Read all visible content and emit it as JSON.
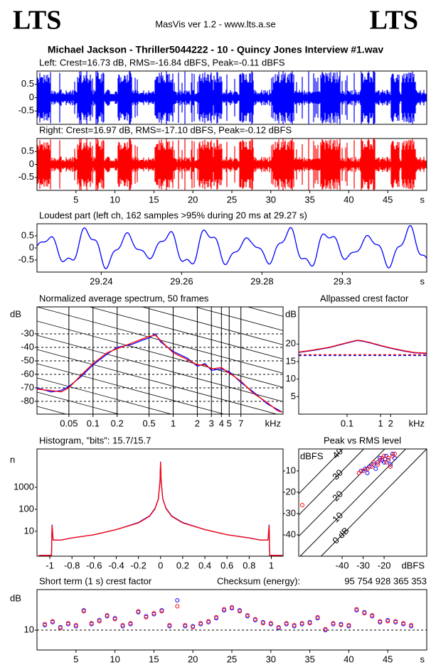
{
  "header": {
    "left_logo": "LTS",
    "center": "MasVis ver 1.2 - www.lts.a.se",
    "right_logo": "LTS",
    "file": "Michael Jackson - Thriller5044222 - 10 - Quincy Jones Interview #1.wav"
  },
  "chart_data": [
    {
      "type": "waveform",
      "title": "Left: Crest=16.73 dB, RMS=-16.84 dBFS, Peak=-0.11 dBFS",
      "color": "#0000ff",
      "ylim": [
        -1,
        1
      ],
      "yticks": [
        0.5,
        0,
        -0.5
      ]
    },
    {
      "type": "waveform",
      "title": "Right: Crest=16.97 dB, RMS=-17.10 dBFS, Peak=-0.12 dBFS",
      "color": "#ff0000",
      "ylim": [
        -1,
        1
      ],
      "yticks": [
        0.5,
        0,
        -0.5
      ],
      "xlim": [
        0,
        50
      ],
      "xticks": [
        5,
        10,
        15,
        20,
        25,
        30,
        35,
        40,
        45
      ],
      "x_label": "s"
    },
    {
      "type": "oscillation",
      "title": "Loudest part (left  ch, 162 samples >95% during 20 ms at 29.27 s)",
      "color": "#0000ff",
      "ylim": [
        -1,
        1
      ],
      "yticks": [
        0.5,
        0,
        -0.5
      ],
      "xlim": [
        29.224,
        29.321
      ],
      "xticks": [
        29.24,
        29.26,
        29.28,
        29.3
      ],
      "x_label": "s"
    },
    {
      "type": "line",
      "title": "Normalized average spectrum, 50 frames",
      "y_label": "dB",
      "x_label": "kHz",
      "xlog": true,
      "grid": true,
      "xlim": [
        0.02,
        23.5
      ],
      "xticks": [
        0.05,
        0.1,
        0.2,
        0.5,
        1,
        2,
        3,
        4,
        5,
        7
      ],
      "ylim": [
        -89.5,
        -10
      ],
      "yticks": [
        -30,
        -40,
        -50,
        -60,
        -70,
        -80
      ],
      "x": [
        0.02,
        0.03,
        0.04,
        0.05,
        0.07,
        0.1,
        0.15,
        0.2,
        0.3,
        0.4,
        0.5,
        0.6,
        0.7,
        1,
        1.5,
        2,
        2.5,
        3,
        4,
        5,
        7,
        10,
        15,
        20,
        23
      ],
      "series": [
        {
          "color": "#0000ff",
          "values": [
            -70,
            -73,
            -72,
            -69,
            -62,
            -53,
            -45,
            -40,
            -38,
            -35,
            -33,
            -30,
            -36,
            -43,
            -48,
            -54,
            -52,
            -57,
            -56,
            -58,
            -66,
            -73,
            -82,
            -86,
            -88
          ]
        },
        {
          "color": "#ff0000",
          "values": [
            -71,
            -72,
            -73,
            -70,
            -61,
            -52,
            -44,
            -41,
            -37,
            -34,
            -32,
            -31,
            -35,
            -44,
            -49,
            -53,
            -53,
            -56,
            -55,
            -59,
            -65,
            -74,
            -81,
            -87,
            -88
          ]
        }
      ]
    },
    {
      "type": "line",
      "title": "Allpassed crest factor",
      "y_label": "dB",
      "x_label": "kHz",
      "xlog": true,
      "xlim": [
        0.0036,
        24
      ],
      "xticks": [
        0.1,
        1,
        2
      ],
      "ylim": [
        0,
        30.6
      ],
      "yticks": [
        20,
        15,
        10,
        5
      ],
      "x": [
        0.0036,
        0.01,
        0.03,
        0.1,
        0.2,
        0.3,
        0.5,
        1,
        2,
        5,
        10,
        24
      ],
      "crest_lines": [
        16.73,
        16.97
      ],
      "series": [
        {
          "color": "#0000ff",
          "values": [
            17.6,
            18.2,
            19,
            20.3,
            21,
            20.8,
            20.3,
            19.5,
            18.8,
            18,
            17.5,
            17.3
          ]
        },
        {
          "color": "#ff0000",
          "values": [
            17.7,
            18.3,
            19.1,
            20.4,
            21.1,
            20.9,
            20.4,
            19.6,
            18.9,
            18.1,
            17.6,
            17.4
          ]
        }
      ]
    },
    {
      "type": "line",
      "title": "Histogram, \"bits\": 15.7/15.7",
      "y_label": "n",
      "ylog": true,
      "xlim": [
        -1.116,
        1.106
      ],
      "xticks": [
        -1,
        -0.8,
        -0.6,
        -0.4,
        -0.2,
        0,
        0.2,
        0.4,
        0.6,
        0.8,
        1
      ],
      "ylim": [
        0.74,
        55000
      ],
      "yticks": [
        10,
        100,
        1000
      ],
      "x": [
        -1.1,
        -0.985,
        -0.98,
        -0.97,
        -0.9,
        -0.8,
        -0.6,
        -0.4,
        -0.2,
        -0.1,
        -0.05,
        -0.02,
        -0.005,
        0,
        0.005,
        0.02,
        0.05,
        0.1,
        0.2,
        0.4,
        0.6,
        0.8,
        0.9,
        0.97,
        0.98,
        0.985,
        1.1
      ],
      "series": [
        {
          "color": "#0000ff",
          "values": [
            0.8,
            0.8,
            20,
            4,
            4,
            5,
            7,
            12,
            25,
            50,
            110,
            300,
            2000,
            14500,
            2000,
            300,
            110,
            50,
            25,
            12,
            7,
            5,
            4,
            4,
            20,
            0.8,
            0.8
          ]
        },
        {
          "color": "#ff0000",
          "values": [
            0.8,
            0.8,
            18,
            4,
            4,
            5,
            7,
            12,
            24,
            48,
            105,
            290,
            1900,
            14000,
            1900,
            290,
            105,
            48,
            24,
            12,
            7,
            5,
            4,
            4,
            18,
            0.8,
            0.8
          ]
        }
      ]
    },
    {
      "type": "scatter",
      "title": "Peak vs RMS level",
      "y_label": "dBFS",
      "x_label": "dBFS",
      "xlim": [
        -60.7,
        0.3
      ],
      "xticks": [
        -40,
        -30,
        -20
      ],
      "ylim": [
        -50,
        0.3
      ],
      "yticks": [
        -10,
        -20,
        -30,
        -40
      ],
      "crest_lines": [
        40,
        30,
        20,
        10,
        {
          "value": 0,
          "label": "0 dB"
        }
      ],
      "series": [
        {
          "color": "#0000ff",
          "x": [
            -31,
            -29,
            -28,
            -27,
            -25,
            -24,
            -23,
            -22,
            -21,
            -20,
            -19,
            -18,
            -17,
            -16,
            -15
          ],
          "values": [
            -10,
            -9,
            -11,
            -8,
            -7,
            -9,
            -6,
            -4,
            -5,
            -6,
            -3,
            -5,
            -7,
            -2,
            -4
          ]
        },
        {
          "color": "#ff0000",
          "x": [
            -59,
            -32,
            -30,
            -28,
            -26,
            -25,
            -23,
            -22,
            -21,
            -20,
            -19,
            -18,
            -17,
            -16,
            -15
          ],
          "values": [
            -26,
            -11,
            -10,
            -9,
            -8,
            -6,
            -7,
            -5,
            -4,
            -3,
            -6,
            -4,
            -8,
            -3,
            -2
          ]
        }
      ]
    },
    {
      "type": "scatter",
      "title": "Short term (1 s) crest factor",
      "checksum_label": "Checksum (energy):",
      "checksum": "95 754 928 365 353",
      "y_label": "dB",
      "x_label": "s",
      "grid": true,
      "xlim": [
        0,
        50
      ],
      "xticks": [
        5,
        10,
        15,
        20,
        25,
        30,
        35,
        40,
        45
      ],
      "ylim": [
        0,
        30.4
      ],
      "yticks": [
        10
      ],
      "x": [
        1,
        2,
        3,
        4,
        5,
        6,
        7,
        8,
        9,
        10,
        11,
        12,
        13,
        14,
        15,
        16,
        17,
        18,
        19,
        20,
        21,
        22,
        23,
        24,
        25,
        26,
        27,
        28,
        29,
        30,
        31,
        32,
        33,
        34,
        35,
        36,
        37,
        38,
        39,
        40,
        41,
        42,
        43,
        44,
        45,
        46,
        47,
        48
      ],
      "series": [
        {
          "color": "#0000ff",
          "values": [
            12.5,
            14,
            11.5,
            13,
            12,
            20,
            13,
            15,
            17,
            16,
            12,
            13,
            19,
            17,
            18,
            20,
            12,
            25,
            12,
            12,
            13,
            14,
            16,
            20,
            21,
            20,
            17,
            15,
            14,
            13,
            11,
            13,
            12,
            13,
            14,
            16,
            10,
            13,
            13,
            12,
            20,
            19,
            17,
            14,
            15,
            14,
            13,
            12
          ]
        },
        {
          "color": "#ff0000",
          "values": [
            13,
            14.5,
            11,
            13.5,
            12.5,
            19.5,
            13.5,
            14.5,
            17.5,
            15.5,
            12.5,
            13.5,
            19.5,
            16.5,
            18.5,
            19.5,
            12.5,
            22,
            12.5,
            11.5,
            13.5,
            14.5,
            16.5,
            20.5,
            21.5,
            19.5,
            17.5,
            15.5,
            13.5,
            13.5,
            11.5,
            13.5,
            12.5,
            13.5,
            13.5,
            16.5,
            10.5,
            13.5,
            12.5,
            12.5,
            20.5,
            18.5,
            17.5,
            14.5,
            14.5,
            14.5,
            13.5,
            12.5
          ]
        }
      ]
    }
  ]
}
